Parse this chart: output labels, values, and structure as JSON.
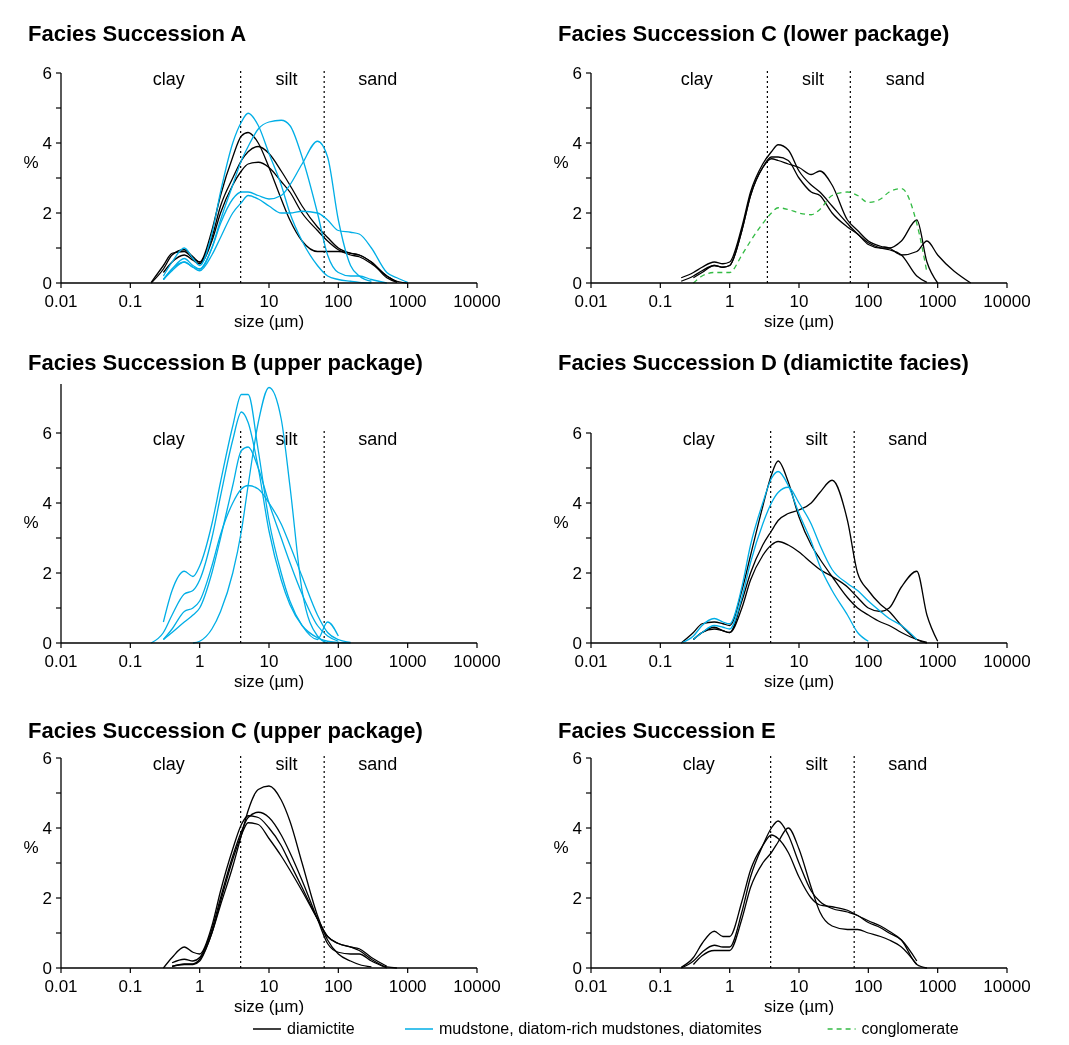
{
  "chart_data": [
    {
      "type": "line",
      "title": "Facies Succession  A",
      "xlabel": "size (µm)",
      "ylabel": "%",
      "log": "x",
      "xlim": [
        0.01,
        10000
      ],
      "xticks": [
        0.01,
        0.1,
        1,
        10,
        100,
        1000,
        10000
      ],
      "ylim": [
        0,
        6
      ],
      "yticks": [
        0,
        {
          "value": 1,
          "label": null
        },
        2,
        {
          "value": 3,
          "label": null
        },
        4,
        {
          "value": 5,
          "label": null
        },
        6
      ],
      "x": [
        0.2,
        0.3,
        0.4,
        0.6,
        0.8,
        1,
        1.5,
        2,
        3,
        4,
        5,
        7,
        10,
        15,
        20,
        30,
        50,
        70,
        100,
        150,
        200,
        300,
        500,
        700,
        1000
      ],
      "ref_lines": [
        {
          "axis": "x",
          "value": 3.9,
          "line_style": "dotted"
        },
        {
          "axis": "x",
          "value": 62.5,
          "line_style": "dotted"
        }
      ],
      "annotations": [
        "clay",
        "silt",
        "sand"
      ],
      "legend": "bottom",
      "series": [
        {
          "name": "diamictite",
          "color": "#000000",
          "values": [
            0,
            0.4,
            0.8,
            0.95,
            0.75,
            0.6,
            1.3,
            2.2,
            3.0,
            3.5,
            3.75,
            3.9,
            3.7,
            3.2,
            2.8,
            2.2,
            1.6,
            1.3,
            1.0,
            0.85,
            0.8,
            0.6,
            0.2,
            0.05,
            0
          ]
        },
        {
          "color": "#000000",
          "values": [
            0.02,
            0.5,
            0.85,
            0.9,
            0.7,
            0.6,
            1.5,
            2.5,
            3.6,
            4.2,
            4.3,
            4.0,
            3.3,
            2.4,
            1.8,
            1.2,
            0.9,
            0.9,
            0.9,
            0.85,
            0.8,
            0.6,
            0.15,
            0.02,
            null
          ]
        },
        {
          "color": "#000000",
          "values": [
            null,
            0.3,
            0.6,
            0.8,
            0.65,
            0.55,
            1.2,
            2.0,
            2.8,
            3.2,
            3.4,
            3.45,
            3.3,
            2.9,
            2.6,
            2.0,
            1.5,
            1.2,
            0.95,
            0.8,
            0.75,
            0.55,
            0.2,
            0.03,
            null
          ]
        },
        {
          "name": "mudstone, diatom-rich mudstones, diatomites",
          "color": "#00aee6",
          "values": [
            null,
            0.2,
            0.6,
            1.0,
            0.7,
            0.5,
            1.4,
            2.6,
            4.0,
            4.6,
            4.85,
            4.5,
            3.7,
            2.8,
            2.0,
            1.2,
            0.5,
            0.2,
            0.1,
            0.05,
            0.02,
            0,
            null,
            null,
            null
          ]
        },
        {
          "color": "#00aee6",
          "values": [
            null,
            0.1,
            0.4,
            0.6,
            0.45,
            0.4,
            1.0,
            1.8,
            2.8,
            3.5,
            3.9,
            4.4,
            4.6,
            4.65,
            4.5,
            3.6,
            2.0,
            0.8,
            0.3,
            0.2,
            0.2,
            0.1,
            0,
            null,
            null
          ]
        },
        {
          "color": "#00aee6",
          "values": [
            null,
            0.1,
            0.4,
            0.7,
            0.5,
            0.4,
            1.0,
            1.7,
            2.4,
            2.6,
            2.6,
            2.5,
            2.4,
            2.5,
            2.8,
            3.4,
            4.05,
            3.6,
            1.8,
            0.5,
            0.2,
            0.05,
            null,
            null,
            null
          ]
        },
        {
          "color": "#00aee6",
          "values": [
            null,
            0.1,
            0.35,
            0.6,
            0.45,
            0.35,
            0.8,
            1.3,
            2.0,
            2.3,
            2.5,
            2.4,
            2.2,
            2.0,
            2.0,
            2.05,
            2.0,
            1.8,
            1.5,
            1.45,
            1.4,
            1.0,
            0.3,
            0.15,
            0.02
          ]
        }
      ]
    },
    {
      "type": "line",
      "title": "Facies Succession  C (lower package)",
      "xlabel": "size (µm)",
      "ylabel": "%",
      "log": "x",
      "xlim": [
        0.01,
        10000
      ],
      "xticks": [
        0.01,
        0.1,
        1,
        10,
        100,
        1000,
        10000
      ],
      "ylim": [
        0,
        6
      ],
      "yticks": [
        0,
        {
          "value": 1,
          "label": null
        },
        2,
        {
          "value": 3,
          "label": null
        },
        4,
        {
          "value": 5,
          "label": null
        },
        6
      ],
      "x": [
        0.2,
        0.3,
        0.4,
        0.6,
        0.8,
        1,
        1.5,
        2,
        3,
        4,
        5,
        7,
        10,
        15,
        20,
        30,
        50,
        70,
        100,
        150,
        200,
        300,
        500,
        700,
        1000,
        3000
      ],
      "ref_lines": [
        {
          "axis": "x",
          "value": 3.5,
          "line_style": "dotted"
        },
        {
          "axis": "x",
          "value": 55,
          "line_style": "dotted"
        }
      ],
      "annotations": [
        "clay",
        "silt",
        "sand"
      ],
      "series": [
        {
          "color": "#000000",
          "values": [
            0.15,
            0.3,
            0.45,
            0.6,
            0.55,
            0.6,
            1.6,
            2.6,
            3.4,
            3.75,
            3.95,
            3.8,
            3.2,
            2.8,
            2.6,
            2.2,
            1.7,
            1.4,
            1.15,
            1.0,
            0.95,
            0.8,
            0.2,
            0.02,
            null,
            null
          ]
        },
        {
          "color": "#000000",
          "values": [
            0.05,
            0.2,
            0.35,
            0.5,
            0.45,
            0.5,
            1.5,
            2.5,
            3.3,
            3.6,
            3.6,
            3.5,
            3.0,
            2.6,
            2.5,
            2.0,
            1.6,
            1.4,
            1.1,
            1.0,
            1.0,
            1.2,
            1.8,
            0.6,
            0,
            null
          ]
        },
        {
          "color": "#000000",
          "values": [
            null,
            0.15,
            0.3,
            0.5,
            0.45,
            0.5,
            1.5,
            2.5,
            3.3,
            3.55,
            3.5,
            3.4,
            3.3,
            3.1,
            3.2,
            2.8,
            1.8,
            1.5,
            1.2,
            1.05,
            1.0,
            0.8,
            0.9,
            1.2,
            0.8,
            0
          ]
        },
        {
          "name": "conglomerate",
          "color": "#33bb44",
          "line_style": "dashed",
          "values": [
            null,
            0,
            0.2,
            0.3,
            0.3,
            0.3,
            0.8,
            1.2,
            1.7,
            2.0,
            2.15,
            2.1,
            2.0,
            1.95,
            2.1,
            2.5,
            2.6,
            2.5,
            2.3,
            2.4,
            2.6,
            2.7,
            1.7,
            0.3,
            null,
            null
          ]
        }
      ]
    },
    {
      "type": "line",
      "title": "Facies Succession B (upper package)",
      "xlabel": "size (µm)",
      "ylabel": "%",
      "log": "x",
      "xlim": [
        0.01,
        10000
      ],
      "xticks": [
        0.01,
        0.1,
        1,
        10,
        100,
        1000,
        10000
      ],
      "ylim": [
        0,
        7.4
      ],
      "yticks": [
        0,
        {
          "value": 1,
          "label": null
        },
        2,
        {
          "value": 3,
          "label": null
        },
        4,
        {
          "value": 5,
          "label": null
        },
        6
      ],
      "x": [
        0.2,
        0.3,
        0.4,
        0.6,
        0.8,
        1,
        1.5,
        2,
        3,
        4,
        5,
        7,
        10,
        15,
        20,
        30,
        50,
        70,
        100,
        150
      ],
      "ref_lines": [
        {
          "axis": "x",
          "value": 3.9,
          "line_style": "dotted"
        },
        {
          "axis": "x",
          "value": 62.5,
          "line_style": "dotted"
        }
      ],
      "annotations": [
        "clay",
        "silt",
        "sand"
      ],
      "series": [
        {
          "color": "#00aee6",
          "values": [
            0,
            0.3,
            0.8,
            1.4,
            1.5,
            1.8,
            3.0,
            4.2,
            5.8,
            6.6,
            6.3,
            5.0,
            3.2,
            1.8,
            1.1,
            0.5,
            0.15,
            0.05,
            0.02,
            0
          ]
        },
        {
          "color": "#00aee6",
          "values": [
            null,
            0.1,
            0.4,
            0.9,
            1.0,
            1.2,
            2.2,
            3.1,
            4.0,
            4.4,
            4.5,
            4.4,
            4.0,
            3.4,
            2.8,
            1.9,
            0.8,
            0.3,
            0.1,
            0.02
          ]
        },
        {
          "color": "#00aee6",
          "values": [
            null,
            null,
            null,
            null,
            0,
            0.05,
            0.4,
            0.9,
            2.0,
            3.2,
            4.5,
            6.3,
            7.3,
            6.4,
            4.5,
            1.5,
            0.2,
            0,
            null,
            null
          ]
        },
        {
          "color": "#00aee6",
          "values": [
            null,
            0.6,
            1.5,
            2.05,
            1.9,
            2.2,
            3.4,
            4.6,
            6.2,
            7.1,
            7.1,
            5.5,
            3.5,
            2.0,
            1.2,
            0.5,
            0.1,
            0.6,
            0.2,
            null
          ]
        },
        {
          "color": "#00aee6",
          "values": [
            null,
            0.1,
            0.3,
            0.6,
            0.8,
            1.0,
            2.0,
            3.0,
            4.5,
            5.5,
            5.6,
            5.0,
            4.0,
            3.0,
            2.3,
            1.4,
            0.5,
            0.2,
            0.05,
            null
          ]
        }
      ]
    },
    {
      "type": "line",
      "title": "Facies Succession  D (diamictite facies)",
      "xlabel": "size (µm)",
      "ylabel": "%",
      "log": "x",
      "xlim": [
        0.01,
        10000
      ],
      "xticks": [
        0.01,
        0.1,
        1,
        10,
        100,
        1000,
        10000
      ],
      "ylim": [
        0,
        6
      ],
      "yticks": [
        0,
        {
          "value": 1,
          "label": null
        },
        2,
        {
          "value": 3,
          "label": null
        },
        4,
        {
          "value": 5,
          "label": null
        },
        6
      ],
      "x": [
        0.2,
        0.3,
        0.4,
        0.6,
        0.8,
        1,
        1.5,
        2,
        3,
        4,
        5,
        7,
        10,
        15,
        20,
        30,
        50,
        70,
        100,
        150,
        200,
        300,
        500,
        700,
        1000
      ],
      "ref_lines": [
        {
          "axis": "x",
          "value": 3.9,
          "line_style": "dotted"
        },
        {
          "axis": "x",
          "value": 62.5,
          "line_style": "dotted"
        }
      ],
      "annotations": [
        "clay",
        "silt",
        "sand"
      ],
      "series": [
        {
          "color": "#000000",
          "values": [
            0,
            0.3,
            0.55,
            0.6,
            0.55,
            0.5,
            1.5,
            2.5,
            3.9,
            4.8,
            5.2,
            4.6,
            3.6,
            2.8,
            2.4,
            1.9,
            1.3,
            1.0,
            0.8,
            0.6,
            0.5,
            0.3,
            0.1,
            0.02,
            null
          ]
        },
        {
          "color": "#000000",
          "values": [
            null,
            0.1,
            0.3,
            0.4,
            0.35,
            0.3,
            1.2,
            2.0,
            2.8,
            3.2,
            3.5,
            3.7,
            3.8,
            4.0,
            4.3,
            4.65,
            3.5,
            2.0,
            1.5,
            1.1,
            0.9,
            0.5,
            0.1,
            0,
            null
          ]
        },
        {
          "color": "#000000",
          "values": [
            null,
            0.1,
            0.3,
            0.45,
            0.35,
            0.3,
            1.0,
            1.8,
            2.5,
            2.8,
            2.9,
            2.8,
            2.6,
            2.3,
            2.1,
            1.9,
            1.6,
            1.3,
            1.0,
            0.9,
            1.0,
            1.6,
            2.05,
            0.8,
            0.05
          ]
        },
        {
          "color": "#00aee6",
          "values": [
            0,
            0.2,
            0.5,
            0.7,
            0.6,
            0.55,
            1.6,
            2.8,
            4.0,
            4.7,
            4.9,
            4.5,
            3.7,
            2.9,
            2.2,
            1.5,
            0.8,
            0.3,
            0.05,
            null,
            null,
            null,
            null,
            null,
            null
          ]
        },
        {
          "color": "#00aee6",
          "values": [
            null,
            0.1,
            0.3,
            0.5,
            0.45,
            0.4,
            1.3,
            2.3,
            3.4,
            4.0,
            4.3,
            4.45,
            4.0,
            3.4,
            2.8,
            2.1,
            1.7,
            1.5,
            1.2,
            0.9,
            0.7,
            0.5,
            0.1,
            null,
            null
          ]
        }
      ]
    },
    {
      "type": "line",
      "title": "Facies Succession  C (upper package)",
      "xlabel": "size (µm)",
      "ylabel": "%",
      "log": "x",
      "xlim": [
        0.01,
        10000
      ],
      "xticks": [
        0.01,
        0.1,
        1,
        10,
        100,
        1000,
        10000
      ],
      "ylim": [
        0,
        6
      ],
      "yticks": [
        0,
        {
          "value": 1,
          "label": null
        },
        2,
        {
          "value": 3,
          "label": null
        },
        4,
        {
          "value": 5,
          "label": null
        },
        6
      ],
      "x": [
        0.3,
        0.4,
        0.6,
        0.8,
        1,
        1.5,
        2,
        3,
        4,
        5,
        7,
        10,
        15,
        20,
        30,
        50,
        70,
        100,
        150,
        200,
        300,
        500,
        700
      ],
      "ref_lines": [
        {
          "axis": "x",
          "value": 3.9,
          "line_style": "dotted"
        },
        {
          "axis": "x",
          "value": 62.5,
          "line_style": "dotted"
        }
      ],
      "annotations": [
        "clay",
        "silt",
        "sand"
      ],
      "series": [
        {
          "color": "#000000",
          "values": [
            null,
            0.05,
            0.1,
            0.1,
            0.2,
            1.0,
            1.8,
            2.9,
            3.8,
            4.5,
            5.1,
            5.2,
            4.8,
            4.2,
            3.0,
            1.5,
            0.8,
            0.4,
            0.2,
            0.1,
            0.03,
            null,
            null
          ]
        },
        {
          "color": "#000000",
          "values": [
            0,
            0.3,
            0.6,
            0.45,
            0.4,
            1.2,
            2.2,
            3.4,
            4.1,
            4.35,
            4.3,
            4.0,
            3.5,
            3.0,
            2.3,
            1.4,
            0.9,
            0.7,
            0.6,
            0.55,
            0.3,
            0.05,
            null
          ]
        },
        {
          "color": "#000000",
          "values": [
            null,
            0.15,
            0.25,
            0.2,
            0.3,
            1.1,
            2.0,
            3.2,
            3.9,
            4.3,
            4.45,
            4.3,
            3.8,
            3.3,
            2.5,
            1.4,
            0.7,
            0.45,
            0.4,
            0.4,
            0.2,
            0,
            null
          ]
        },
        {
          "color": "#000000",
          "values": [
            null,
            0.04,
            0.12,
            0.12,
            0.25,
            1.0,
            1.9,
            3.1,
            3.8,
            4.15,
            4.1,
            3.7,
            3.2,
            2.8,
            2.2,
            1.4,
            0.9,
            0.7,
            0.6,
            0.5,
            0.25,
            0.03,
            0
          ]
        }
      ]
    },
    {
      "type": "line",
      "title": "Facies Succession  E",
      "xlabel": "size (µm)",
      "ylabel": "%",
      "log": "x",
      "xlim": [
        0.01,
        10000
      ],
      "xticks": [
        0.01,
        0.1,
        1,
        10,
        100,
        1000,
        10000
      ],
      "ylim": [
        0,
        6
      ],
      "yticks": [
        0,
        {
          "value": 1,
          "label": null
        },
        2,
        {
          "value": 3,
          "label": null
        },
        4,
        {
          "value": 5,
          "label": null
        },
        6
      ],
      "x": [
        0.2,
        0.3,
        0.4,
        0.6,
        0.8,
        1,
        1.5,
        2,
        3,
        4,
        5,
        7,
        10,
        15,
        20,
        30,
        50,
        70,
        100,
        150,
        200,
        300,
        500,
        700
      ],
      "ref_lines": [
        {
          "axis": "x",
          "value": 3.9,
          "line_style": "dotted"
        },
        {
          "axis": "x",
          "value": 62.5,
          "line_style": "dotted"
        }
      ],
      "annotations": [
        "clay",
        "silt",
        "sand"
      ],
      "series": [
        {
          "color": "#000000",
          "values": [
            0.02,
            0.3,
            0.7,
            1.05,
            0.9,
            0.9,
            1.9,
            2.8,
            3.5,
            3.8,
            3.7,
            3.3,
            2.6,
            2.0,
            1.8,
            1.75,
            1.65,
            1.5,
            1.35,
            1.2,
            1.05,
            0.8,
            0.1,
            0
          ]
        },
        {
          "color": "#000000",
          "values": [
            0,
            0.2,
            0.45,
            0.65,
            0.6,
            0.6,
            1.6,
            2.6,
            3.5,
            4.0,
            4.2,
            3.8,
            3.0,
            2.2,
            1.9,
            1.7,
            1.6,
            1.5,
            1.3,
            1.15,
            1.0,
            0.8,
            0.2,
            null
          ]
        },
        {
          "color": "#000000",
          "values": [
            null,
            0.1,
            0.35,
            0.5,
            0.5,
            0.5,
            1.4,
            2.3,
            3.0,
            3.3,
            3.6,
            4.0,
            3.4,
            2.3,
            1.6,
            1.2,
            1.1,
            1.1,
            1.0,
            0.9,
            0.8,
            0.6,
            0.1,
            null
          ]
        }
      ]
    }
  ]
}
